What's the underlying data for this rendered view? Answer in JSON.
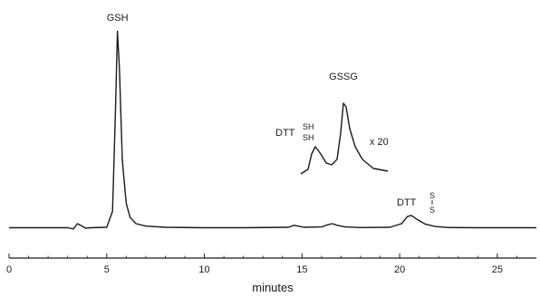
{
  "chart_data": {
    "type": "line",
    "title": "",
    "xlabel": "minutes",
    "ylabel": "",
    "xlim": [
      0,
      27
    ],
    "ylim": [
      0,
      1
    ],
    "x_ticks": [
      0,
      5,
      10,
      15,
      20,
      25
    ],
    "x_tick_labels": [
      "0",
      "5",
      "10",
      "15",
      "20",
      "25"
    ],
    "grid": false,
    "series": [
      {
        "name": "",
        "x": [
          0,
          3.0,
          3.3,
          3.5,
          3.7,
          3.9,
          4.2,
          5.0,
          5.3,
          5.45,
          5.55,
          5.65,
          5.8,
          6.0,
          6.2,
          6.5,
          7.0,
          8.0,
          10.0,
          12.0,
          14.3,
          14.6,
          14.8,
          15.1,
          16.0,
          16.3,
          16.55,
          16.8,
          17.2,
          18.0,
          19.5,
          20.1,
          20.4,
          20.6,
          20.9,
          21.3,
          21.8,
          22.5,
          24.0,
          27.0
        ],
        "y": [
          0.02,
          0.02,
          0.014,
          0.04,
          0.03,
          0.018,
          0.02,
          0.022,
          0.1,
          0.6,
          0.98,
          0.8,
          0.35,
          0.14,
          0.07,
          0.04,
          0.028,
          0.022,
          0.02,
          0.02,
          0.022,
          0.032,
          0.028,
          0.022,
          0.024,
          0.034,
          0.04,
          0.032,
          0.024,
          0.021,
          0.022,
          0.04,
          0.075,
          0.08,
          0.06,
          0.038,
          0.026,
          0.021,
          0.02,
          0.02
        ]
      }
    ],
    "inset": {
      "scale_label": "x 20",
      "xlim": [
        14.2,
        19.0
      ],
      "x": [
        14.2,
        14.6,
        14.8,
        15.0,
        15.3,
        15.6,
        15.9,
        16.2,
        16.4,
        16.55,
        16.7,
        16.9,
        17.2,
        17.6,
        18.2,
        19.0
      ],
      "y": [
        0.0,
        0.05,
        0.22,
        0.3,
        0.22,
        0.12,
        0.1,
        0.16,
        0.45,
        0.78,
        0.74,
        0.5,
        0.3,
        0.16,
        0.06,
        0.03
      ]
    },
    "annotations": [
      {
        "text": "GSH",
        "x": 5.55,
        "y": 1.0
      },
      {
        "text": "GSSG",
        "x": 16.55,
        "y": 0.8,
        "inset": true
      },
      {
        "text": "DTT",
        "sub_top": "SH",
        "sub_bottom": "SH",
        "x": 14.8,
        "y": 0.3,
        "inset": true
      },
      {
        "text": "DTT",
        "sub_top": "S",
        "sub_bottom": "S",
        "x": 20.6,
        "y": 0.08
      }
    ]
  }
}
